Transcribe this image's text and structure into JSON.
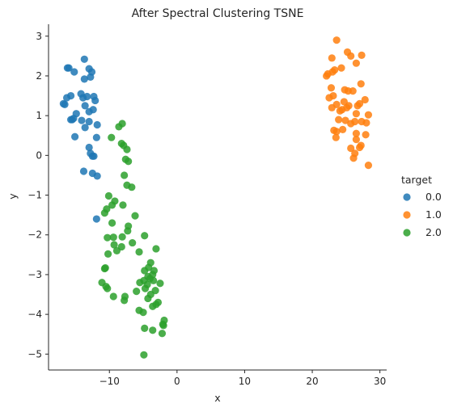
{
  "chart_data": {
    "type": "scatter",
    "title": "After Spectral Clustering TSNE",
    "xlabel": "x",
    "ylabel": "y",
    "xlim": [
      -19,
      31
    ],
    "ylim": [
      -5.4,
      3.3
    ],
    "xticks": [
      -10,
      0,
      10,
      20,
      30
    ],
    "yticks": [
      -5,
      -4,
      -3,
      -2,
      -1,
      0,
      1,
      2,
      3
    ],
    "grid": false,
    "legend": {
      "title": "target",
      "placement": "right"
    },
    "series": [
      {
        "name": "0.0",
        "color": "#1f77b4",
        "points": [
          [
            -16.2,
            2.2
          ],
          [
            -16.0,
            2.2
          ],
          [
            -15.2,
            2.1
          ],
          [
            -13.7,
            2.42
          ],
          [
            -13.0,
            2.18
          ],
          [
            -12.6,
            2.1
          ],
          [
            -12.8,
            1.97
          ],
          [
            -13.7,
            1.92
          ],
          [
            -16.3,
            1.45
          ],
          [
            -16.8,
            1.3
          ],
          [
            -16.6,
            1.28
          ],
          [
            -15.7,
            1.5
          ],
          [
            -14.2,
            1.55
          ],
          [
            -13.9,
            1.45
          ],
          [
            -13.3,
            1.48
          ],
          [
            -12.3,
            1.48
          ],
          [
            -12.1,
            1.38
          ],
          [
            -13.6,
            1.25
          ],
          [
            -13.0,
            1.1
          ],
          [
            -12.4,
            1.15
          ],
          [
            -14.9,
            1.05
          ],
          [
            -15.7,
            0.9
          ],
          [
            -15.5,
            0.9
          ],
          [
            -15.3,
            0.93
          ],
          [
            -14.1,
            0.88
          ],
          [
            -13.0,
            0.85
          ],
          [
            -13.6,
            0.7
          ],
          [
            -11.8,
            0.77
          ],
          [
            -15.1,
            0.47
          ],
          [
            -11.9,
            0.45
          ],
          [
            -13.0,
            0.2
          ],
          [
            -12.8,
            0.05
          ],
          [
            -12.5,
            -0.02
          ],
          [
            -12.3,
            -0.02
          ],
          [
            -13.8,
            -0.4
          ],
          [
            -12.5,
            -0.45
          ],
          [
            -11.8,
            -0.52
          ],
          [
            -11.9,
            -1.6
          ]
        ]
      },
      {
        "name": "1.0",
        "color": "#ff7f0e",
        "points": [
          [
            23.6,
            2.9
          ],
          [
            25.7,
            2.5
          ],
          [
            25.2,
            2.6
          ],
          [
            27.3,
            2.52
          ],
          [
            22.9,
            2.45
          ],
          [
            26.5,
            2.32
          ],
          [
            24.3,
            2.2
          ],
          [
            23.3,
            2.15
          ],
          [
            23.0,
            2.1
          ],
          [
            22.3,
            2.05
          ],
          [
            22.1,
            2.0
          ],
          [
            27.2,
            1.8
          ],
          [
            22.8,
            1.7
          ],
          [
            24.8,
            1.65
          ],
          [
            25.3,
            1.62
          ],
          [
            26.0,
            1.62
          ],
          [
            23.1,
            1.5
          ],
          [
            22.5,
            1.45
          ],
          [
            27.8,
            1.4
          ],
          [
            24.7,
            1.35
          ],
          [
            23.6,
            1.28
          ],
          [
            25.4,
            1.25
          ],
          [
            26.7,
            1.25
          ],
          [
            27.0,
            1.3
          ],
          [
            22.9,
            1.2
          ],
          [
            25.1,
            1.2
          ],
          [
            24.4,
            1.15
          ],
          [
            24.1,
            1.12
          ],
          [
            26.5,
            1.05
          ],
          [
            28.3,
            1.02
          ],
          [
            23.9,
            0.9
          ],
          [
            24.9,
            0.88
          ],
          [
            26.3,
            0.85
          ],
          [
            27.3,
            0.85
          ],
          [
            28.0,
            0.82
          ],
          [
            25.7,
            0.8
          ],
          [
            24.5,
            0.65
          ],
          [
            23.2,
            0.63
          ],
          [
            23.6,
            0.6
          ],
          [
            26.5,
            0.55
          ],
          [
            27.9,
            0.52
          ],
          [
            23.5,
            0.45
          ],
          [
            26.5,
            0.4
          ],
          [
            27.2,
            0.25
          ],
          [
            27.0,
            0.2
          ],
          [
            25.7,
            0.18
          ],
          [
            26.3,
            0.05
          ],
          [
            26.1,
            -0.07
          ],
          [
            28.3,
            -0.25
          ]
        ]
      },
      {
        "name": "2.0",
        "color": "#2ca02c",
        "points": [
          [
            -8.1,
            0.8
          ],
          [
            -8.6,
            0.72
          ],
          [
            -9.7,
            0.45
          ],
          [
            -8.2,
            0.3
          ],
          [
            -7.9,
            0.25
          ],
          [
            -7.4,
            0.15
          ],
          [
            -7.6,
            -0.1
          ],
          [
            -7.2,
            -0.15
          ],
          [
            -7.8,
            -0.5
          ],
          [
            -7.4,
            -0.75
          ],
          [
            -6.7,
            -0.8
          ],
          [
            -10.1,
            -1.02
          ],
          [
            -9.2,
            -1.15
          ],
          [
            -9.6,
            -1.25
          ],
          [
            -10.4,
            -1.35
          ],
          [
            -8.0,
            -1.25
          ],
          [
            -10.7,
            -1.45
          ],
          [
            -6.2,
            -1.52
          ],
          [
            -9.6,
            -1.7
          ],
          [
            -7.2,
            -1.78
          ],
          [
            -7.3,
            -1.9
          ],
          [
            -10.3,
            -2.07
          ],
          [
            -9.4,
            -2.06
          ],
          [
            -8.1,
            -2.05
          ],
          [
            -4.8,
            -2.02
          ],
          [
            -6.6,
            -2.2
          ],
          [
            -9.3,
            -2.25
          ],
          [
            -8.2,
            -2.3
          ],
          [
            -3.1,
            -2.35
          ],
          [
            -8.9,
            -2.4
          ],
          [
            -5.6,
            -2.43
          ],
          [
            -10.2,
            -2.48
          ],
          [
            -3.9,
            -2.7
          ],
          [
            -10.7,
            -2.85
          ],
          [
            -10.6,
            -2.83
          ],
          [
            -4.2,
            -2.82
          ],
          [
            -4.8,
            -2.9
          ],
          [
            -3.4,
            -2.9
          ],
          [
            -3.6,
            -3.0
          ],
          [
            -4.3,
            -3.05
          ],
          [
            -4.0,
            -3.1
          ],
          [
            -4.9,
            -3.15
          ],
          [
            -3.5,
            -3.15
          ],
          [
            -11.1,
            -3.2
          ],
          [
            -5.5,
            -3.2
          ],
          [
            -4.4,
            -3.25
          ],
          [
            -10.5,
            -3.3
          ],
          [
            -10.3,
            -3.35
          ],
          [
            -4.7,
            -3.35
          ],
          [
            -2.5,
            -3.22
          ],
          [
            -3.2,
            -3.4
          ],
          [
            -6.0,
            -3.42
          ],
          [
            -9.4,
            -3.55
          ],
          [
            -3.9,
            -3.5
          ],
          [
            -7.7,
            -3.55
          ],
          [
            -7.8,
            -3.65
          ],
          [
            -4.3,
            -3.6
          ],
          [
            -2.8,
            -3.7
          ],
          [
            -3.1,
            -3.75
          ],
          [
            -3.6,
            -3.8
          ],
          [
            -5.6,
            -3.9
          ],
          [
            -5.0,
            -3.95
          ],
          [
            -1.9,
            -4.15
          ],
          [
            -2.1,
            -4.25
          ],
          [
            -2.0,
            -4.28
          ],
          [
            -4.8,
            -4.35
          ],
          [
            -3.6,
            -4.4
          ],
          [
            -2.2,
            -4.48
          ],
          [
            -4.9,
            -5.02
          ]
        ]
      }
    ]
  }
}
